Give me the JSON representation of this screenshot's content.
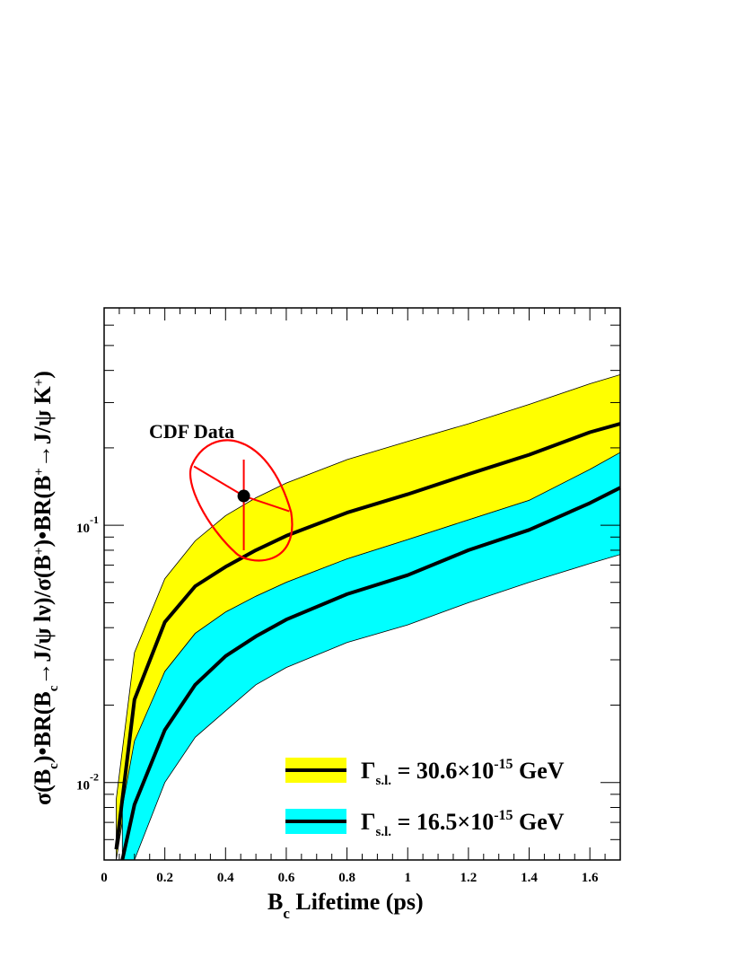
{
  "chart_data": {
    "type": "area",
    "xlabel": "B_c Lifetime (ps)",
    "ylabel": "σ(B_c)•BR(B_c→J/ψ lν)/σ(B^+)•BR(B^+→J/ψ K^+)",
    "xlim": [
      0,
      1.7
    ],
    "ylim": [
      0.005,
      0.7
    ],
    "yscale": "log",
    "grid": false,
    "legend_position": "bottom-right",
    "x_ticks": [
      "0",
      "0.2",
      "0.4",
      "0.6",
      "0.8",
      "1",
      "1.2",
      "1.4",
      "1.6"
    ],
    "y_tick_labels": [
      {
        "value": 0.1,
        "base": "10",
        "exp": "-1"
      },
      {
        "value": 0.01,
        "base": "10",
        "exp": "-2"
      }
    ],
    "series": [
      {
        "name": "Γs.l. = 30.6×10^-15 GeV",
        "label_greek": "Γ",
        "label_sub": "s.l.",
        "label_main": " = 30.6×10",
        "label_exp": "-15",
        "label_unit": " GeV",
        "band_color": "#ffff00",
        "line_color": "#000000",
        "x": [
          0.04,
          0.1,
          0.2,
          0.3,
          0.4,
          0.5,
          0.6,
          0.8,
          1.0,
          1.2,
          1.4,
          1.6,
          1.7
        ],
        "upper": [
          0.0086,
          0.032,
          0.062,
          0.087,
          0.109,
          0.128,
          0.146,
          0.18,
          0.212,
          0.248,
          0.295,
          0.355,
          0.385
        ],
        "central": [
          0.0055,
          0.021,
          0.042,
          0.058,
          0.069,
          0.08,
          0.091,
          0.112,
          0.132,
          0.158,
          0.188,
          0.23,
          0.248
        ],
        "lower": [
          0.0038,
          0.014,
          0.027,
          0.038,
          0.046,
          0.053,
          0.06,
          0.074,
          0.088,
          0.105,
          0.125,
          0.152,
          0.165
        ]
      },
      {
        "name": "Γs.l. = 16.5×10^-15 GeV",
        "label_greek": "Γ",
        "label_sub": "s.l.",
        "label_main": " = 16.5×10",
        "label_exp": "-15",
        "label_unit": " GeV",
        "band_color": "#00ffff",
        "line_color": "#000000",
        "x": [
          0.06,
          0.1,
          0.2,
          0.3,
          0.4,
          0.5,
          0.6,
          0.8,
          1.0,
          1.2,
          1.4,
          1.6,
          1.7
        ],
        "upper": [
          0.008,
          0.0145,
          0.027,
          0.038,
          0.046,
          0.053,
          0.06,
          0.074,
          0.088,
          0.105,
          0.125,
          0.165,
          0.192
        ],
        "central": [
          0.005,
          0.0082,
          0.016,
          0.024,
          0.031,
          0.037,
          0.043,
          0.054,
          0.064,
          0.08,
          0.096,
          0.122,
          0.14
        ],
        "lower": [
          0.005,
          0.005,
          0.01,
          0.015,
          0.019,
          0.024,
          0.028,
          0.035,
          0.041,
          0.05,
          0.06,
          0.071,
          0.077
        ]
      }
    ],
    "annotation": {
      "label": "CDF Data",
      "point_x": 0.46,
      "point_y": 0.13,
      "x_err": [
        0.29,
        0.61
      ],
      "y_err": [
        0.08,
        0.18
      ],
      "color": "#ff0000"
    }
  }
}
